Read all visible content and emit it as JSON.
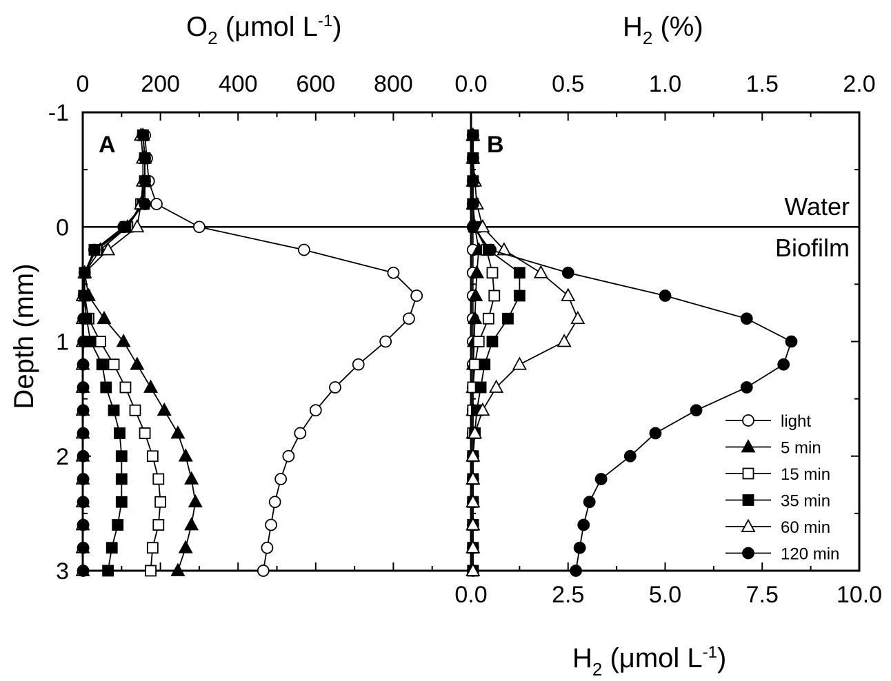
{
  "chart_data": [
    {
      "panel": "A",
      "type": "line",
      "x_axis": {
        "label_main": "O",
        "label_sub": "2",
        "label_rest": " (μmol L",
        "label_sup": "-1",
        "label_end": ")",
        "range": [
          0,
          1000
        ],
        "ticks": [
          "0",
          "200",
          "400",
          "600",
          "800"
        ]
      },
      "y_axis": {
        "label": "Depth (mm)",
        "range": [
          -1,
          3
        ],
        "ticks": [
          "-1",
          "0",
          "1",
          "2",
          "3"
        ],
        "inverted": true
      },
      "annotations": [],
      "series": [
        {
          "name": "light",
          "marker": "circle-open",
          "points": [
            [
              160,
              -0.8
            ],
            [
              165,
              -0.6
            ],
            [
              170,
              -0.4
            ],
            [
              190,
              -0.2
            ],
            [
              300,
              0
            ],
            [
              570,
              0.2
            ],
            [
              800,
              0.4
            ],
            [
              860,
              0.6
            ],
            [
              840,
              0.8
            ],
            [
              780,
              1.0
            ],
            [
              710,
              1.2
            ],
            [
              650,
              1.4
            ],
            [
              600,
              1.6
            ],
            [
              560,
              1.8
            ],
            [
              530,
              2.0
            ],
            [
              510,
              2.2
            ],
            [
              495,
              2.4
            ],
            [
              485,
              2.6
            ],
            [
              475,
              2.8
            ],
            [
              465,
              3.0
            ]
          ]
        },
        {
          "name": "5 min",
          "marker": "triangle-filled",
          "points": [
            [
              155,
              -0.8
            ],
            [
              160,
              -0.6
            ],
            [
              160,
              -0.4
            ],
            [
              155,
              -0.2
            ],
            [
              115,
              0
            ],
            [
              45,
              0.2
            ],
            [
              5,
              0.4
            ],
            [
              15,
              0.6
            ],
            [
              55,
              0.8
            ],
            [
              105,
              1.0
            ],
            [
              140,
              1.2
            ],
            [
              175,
              1.4
            ],
            [
              210,
              1.6
            ],
            [
              245,
              1.8
            ],
            [
              265,
              2.0
            ],
            [
              280,
              2.2
            ],
            [
              290,
              2.4
            ],
            [
              280,
              2.6
            ],
            [
              265,
              2.8
            ],
            [
              245,
              3.0
            ]
          ]
        },
        {
          "name": "15 min",
          "marker": "square-open",
          "points": [
            [
              155,
              -0.8
            ],
            [
              160,
              -0.6
            ],
            [
              160,
              -0.4
            ],
            [
              150,
              -0.2
            ],
            [
              115,
              0
            ],
            [
              35,
              0.2
            ],
            [
              5,
              0.4
            ],
            [
              5,
              0.6
            ],
            [
              15,
              0.8
            ],
            [
              45,
              1.0
            ],
            [
              80,
              1.2
            ],
            [
              110,
              1.4
            ],
            [
              135,
              1.6
            ],
            [
              160,
              1.8
            ],
            [
              180,
              2.0
            ],
            [
              195,
              2.2
            ],
            [
              200,
              2.4
            ],
            [
              195,
              2.6
            ],
            [
              180,
              2.8
            ],
            [
              175,
              3.0
            ]
          ]
        },
        {
          "name": "35 min",
          "marker": "square-filled",
          "points": [
            [
              155,
              -0.8
            ],
            [
              160,
              -0.6
            ],
            [
              160,
              -0.4
            ],
            [
              155,
              -0.2
            ],
            [
              110,
              0
            ],
            [
              30,
              0.2
            ],
            [
              5,
              0.4
            ],
            [
              3,
              0.6
            ],
            [
              10,
              0.8
            ],
            [
              20,
              1.0
            ],
            [
              50,
              1.2
            ],
            [
              60,
              1.4
            ],
            [
              80,
              1.6
            ],
            [
              95,
              1.8
            ],
            [
              100,
              2.0
            ],
            [
              100,
              2.2
            ],
            [
              100,
              2.4
            ],
            [
              90,
              2.6
            ],
            [
              75,
              2.8
            ],
            [
              65,
              3.0
            ]
          ]
        },
        {
          "name": "60 min",
          "marker": "triangle-open",
          "points": [
            [
              150,
              -0.8
            ],
            [
              155,
              -0.6
            ],
            [
              155,
              -0.4
            ],
            [
              150,
              -0.2
            ],
            [
              140,
              0
            ],
            [
              65,
              0.2
            ],
            [
              5,
              0.4
            ],
            [
              0,
              0.6
            ],
            [
              0,
              0.8
            ],
            [
              0,
              1.0
            ],
            [
              0,
              1.2
            ],
            [
              0,
              1.4
            ],
            [
              0,
              1.6
            ],
            [
              0,
              1.8
            ],
            [
              0,
              2.0
            ],
            [
              0,
              2.2
            ],
            [
              0,
              2.4
            ],
            [
              0,
              2.6
            ],
            [
              0,
              2.8
            ],
            [
              0,
              3.0
            ]
          ]
        },
        {
          "name": "120 min",
          "marker": "circle-filled",
          "points": [
            [
              155,
              -0.8
            ],
            [
              160,
              -0.6
            ],
            [
              160,
              -0.4
            ],
            [
              160,
              -0.2
            ],
            [
              105,
              0
            ],
            [
              30,
              0.2
            ],
            [
              5,
              0.4
            ],
            [
              3,
              0.6
            ],
            [
              2,
              0.8
            ],
            [
              2,
              1.0
            ],
            [
              1,
              1.2
            ],
            [
              1,
              1.4
            ],
            [
              1,
              1.6
            ],
            [
              1,
              1.8
            ],
            [
              1,
              2.0
            ],
            [
              1,
              2.2
            ],
            [
              1,
              2.4
            ],
            [
              1,
              2.6
            ],
            [
              1,
              2.8
            ],
            [
              1,
              3.0
            ]
          ]
        }
      ]
    },
    {
      "panel": "B",
      "type": "line",
      "x_axis_top": {
        "label_main": "H",
        "label_sub": "2",
        "label_rest": " (%)",
        "range": [
          0,
          2.0
        ],
        "ticks": [
          "0.0",
          "0.5",
          "1.0",
          "1.5",
          "2.0"
        ]
      },
      "x_axis_bottom": {
        "label_main": "H",
        "label_sub": "2",
        "label_rest": " (μmol L",
        "label_sup": "-1",
        "label_end": ")",
        "range": [
          0,
          10.0
        ],
        "ticks": [
          "0.0",
          "2.5",
          "5.0",
          "7.5",
          "10.0"
        ]
      },
      "y_axis": {
        "range": [
          -1,
          3
        ],
        "inverted": true
      },
      "annotations": [
        "Water",
        "Biofilm"
      ],
      "legend_position": "bottom-right",
      "series": [
        {
          "name": "light",
          "marker": "circle-open",
          "points": [
            [
              0.05,
              -0.8
            ],
            [
              0.05,
              -0.6
            ],
            [
              0.05,
              -0.4
            ],
            [
              0.05,
              -0.2
            ],
            [
              0.05,
              0
            ],
            [
              0.05,
              0.2
            ],
            [
              0.05,
              0.4
            ],
            [
              0.05,
              0.6
            ],
            [
              0.05,
              0.8
            ],
            [
              0.05,
              1.0
            ],
            [
              0.05,
              1.2
            ],
            [
              0.05,
              1.4
            ],
            [
              0.05,
              1.6
            ],
            [
              0.05,
              1.8
            ],
            [
              0.05,
              2.0
            ],
            [
              0.05,
              2.2
            ],
            [
              0.05,
              2.4
            ],
            [
              0.05,
              2.6
            ],
            [
              0.05,
              2.8
            ],
            [
              0.05,
              3.0
            ]
          ]
        },
        {
          "name": "5 min",
          "marker": "triangle-filled",
          "points": [
            [
              0.05,
              -0.8
            ],
            [
              0.05,
              -0.6
            ],
            [
              0.05,
              -0.4
            ],
            [
              0.05,
              -0.2
            ],
            [
              0.1,
              0
            ],
            [
              0.2,
              0.2
            ],
            [
              0.15,
              0.4
            ],
            [
              0.12,
              0.6
            ],
            [
              0.1,
              0.8
            ],
            [
              0.08,
              1.0
            ],
            [
              0.06,
              1.2
            ],
            [
              0.05,
              1.4
            ],
            [
              0.05,
              1.6
            ],
            [
              0.05,
              1.8
            ],
            [
              0.05,
              2.0
            ],
            [
              0.05,
              2.2
            ],
            [
              0.05,
              2.4
            ],
            [
              0.05,
              2.6
            ],
            [
              0.05,
              2.8
            ],
            [
              0.05,
              3.0
            ]
          ]
        },
        {
          "name": "15 min",
          "marker": "square-open",
          "points": [
            [
              0.05,
              -0.8
            ],
            [
              0.05,
              -0.6
            ],
            [
              0.05,
              -0.4
            ],
            [
              0.05,
              -0.2
            ],
            [
              0.1,
              0
            ],
            [
              0.4,
              0.2
            ],
            [
              0.55,
              0.4
            ],
            [
              0.6,
              0.6
            ],
            [
              0.45,
              0.8
            ],
            [
              0.2,
              1.0
            ],
            [
              0.1,
              1.2
            ],
            [
              0.05,
              1.4
            ],
            [
              0.05,
              1.6
            ],
            [
              0.05,
              1.8
            ],
            [
              0.05,
              2.0
            ],
            [
              0.05,
              2.2
            ],
            [
              0.05,
              2.4
            ],
            [
              0.05,
              2.6
            ],
            [
              0.05,
              2.8
            ],
            [
              0.05,
              3.0
            ]
          ]
        },
        {
          "name": "35 min",
          "marker": "square-filled",
          "points": [
            [
              0.05,
              -0.8
            ],
            [
              0.05,
              -0.6
            ],
            [
              0.05,
              -0.4
            ],
            [
              0.05,
              -0.2
            ],
            [
              0.1,
              0
            ],
            [
              0.45,
              0.2
            ],
            [
              1.25,
              0.4
            ],
            [
              1.25,
              0.6
            ],
            [
              0.95,
              0.8
            ],
            [
              0.55,
              1.0
            ],
            [
              0.35,
              1.2
            ],
            [
              0.25,
              1.4
            ],
            [
              0.15,
              1.6
            ],
            [
              0.1,
              1.8
            ],
            [
              0.05,
              2.0
            ],
            [
              0.05,
              2.2
            ],
            [
              0.05,
              2.4
            ],
            [
              0.05,
              2.6
            ],
            [
              0.05,
              2.8
            ],
            [
              0.05,
              3.0
            ]
          ]
        },
        {
          "name": "60 min",
          "marker": "triangle-open",
          "points": [
            [
              0.05,
              -0.8
            ],
            [
              0.05,
              -0.6
            ],
            [
              0.1,
              -0.4
            ],
            [
              0.15,
              -0.2
            ],
            [
              0.3,
              0
            ],
            [
              0.85,
              0.2
            ],
            [
              1.8,
              0.4
            ],
            [
              2.5,
              0.6
            ],
            [
              2.75,
              0.8
            ],
            [
              2.4,
              1.0
            ],
            [
              1.25,
              1.2
            ],
            [
              0.65,
              1.4
            ],
            [
              0.3,
              1.6
            ],
            [
              0.1,
              1.8
            ],
            [
              0.05,
              2.0
            ],
            [
              0.05,
              2.2
            ],
            [
              0.05,
              2.4
            ],
            [
              0.05,
              2.6
            ],
            [
              0.05,
              2.8
            ],
            [
              0.05,
              3.0
            ]
          ]
        },
        {
          "name": "120 min",
          "marker": "circle-filled",
          "points": [
            [
              0.05,
              -0.8
            ],
            [
              0.05,
              -0.6
            ],
            [
              0.05,
              -0.4
            ],
            [
              0.05,
              -0.2
            ],
            [
              0.05,
              0
            ],
            [
              0.5,
              0.2
            ],
            [
              2.5,
              0.4
            ],
            [
              5.0,
              0.6
            ],
            [
              7.1,
              0.8
            ],
            [
              8.25,
              1.0
            ],
            [
              8.05,
              1.2
            ],
            [
              7.1,
              1.4
            ],
            [
              5.8,
              1.6
            ],
            [
              4.75,
              1.8
            ],
            [
              4.1,
              2.0
            ],
            [
              3.35,
              2.2
            ],
            [
              3.05,
              2.4
            ],
            [
              2.9,
              2.6
            ],
            [
              2.8,
              2.8
            ],
            [
              2.7,
              3.0
            ]
          ]
        }
      ]
    }
  ]
}
